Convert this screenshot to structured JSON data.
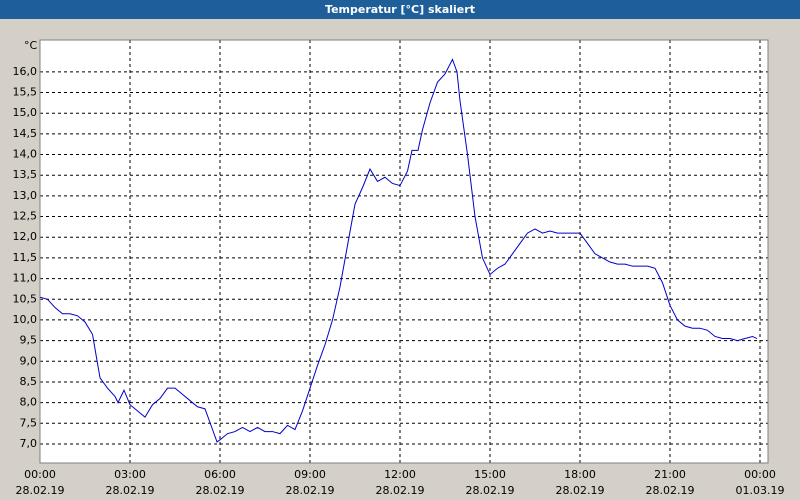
{
  "chart_data": {
    "type": "line",
    "title": "Temperatur [°C] skaliert",
    "ylabel": "°C",
    "x": [
      0,
      0.25,
      0.5,
      0.75,
      1,
      1.25,
      1.5,
      1.75,
      2,
      2.25,
      2.5,
      2.6,
      2.8,
      3,
      3.25,
      3.5,
      3.75,
      4,
      4.25,
      4.5,
      4.75,
      5,
      5.25,
      5.5,
      5.75,
      5.9,
      6,
      6.25,
      6.5,
      6.75,
      7,
      7.25,
      7.5,
      7.75,
      8,
      8.25,
      8.5,
      8.75,
      9,
      9.25,
      9.5,
      9.75,
      10,
      10.25,
      10.5,
      10.75,
      11,
      11.25,
      11.5,
      11.75,
      12,
      12.25,
      12.4,
      12.6,
      12.75,
      13,
      13.25,
      13.5,
      13.75,
      13.9,
      14,
      14.25,
      14.5,
      14.75,
      15,
      15.25,
      15.5,
      15.75,
      16,
      16.25,
      16.5,
      16.75,
      17,
      17.25,
      17.5,
      17.75,
      18,
      18.25,
      18.5,
      18.75,
      19,
      19.25,
      19.5,
      19.75,
      20,
      20.25,
      20.5,
      20.75,
      21,
      21.25,
      21.5,
      21.75,
      22,
      22.25,
      22.5,
      22.75,
      23,
      23.25,
      23.5,
      23.75,
      23.9
    ],
    "series": [
      {
        "name": "Temperatur",
        "color": "#0000c8",
        "values": [
          10.55,
          10.5,
          10.3,
          10.15,
          10.15,
          10.1,
          9.95,
          9.65,
          8.6,
          8.35,
          8.15,
          8.0,
          8.3,
          7.95,
          7.8,
          7.65,
          7.95,
          8.1,
          8.35,
          8.35,
          8.2,
          8.05,
          7.9,
          7.85,
          7.35,
          7.05,
          7.1,
          7.25,
          7.3,
          7.4,
          7.3,
          7.4,
          7.3,
          7.3,
          7.25,
          7.45,
          7.35,
          7.8,
          8.35,
          8.9,
          9.4,
          10.0,
          10.8,
          11.8,
          12.8,
          13.2,
          13.65,
          13.35,
          13.45,
          13.3,
          13.25,
          13.6,
          14.1,
          14.1,
          14.6,
          15.25,
          15.75,
          15.95,
          16.3,
          16.0,
          15.3,
          14.0,
          12.5,
          11.5,
          11.1,
          11.25,
          11.35,
          11.6,
          11.85,
          12.1,
          12.2,
          12.1,
          12.15,
          12.1,
          12.1,
          12.1,
          12.1,
          11.85,
          11.6,
          11.5,
          11.4,
          11.35,
          11.35,
          11.3,
          11.3,
          11.3,
          11.25,
          10.9,
          10.35,
          10.0,
          9.85,
          9.8,
          9.8,
          9.75,
          9.6,
          9.55,
          9.55,
          9.5,
          9.55,
          9.6,
          9.55
        ]
      }
    ],
    "xlim": [
      0,
      24
    ],
    "ylim": [
      6.54,
      16.77
    ],
    "xticks": [
      {
        "value": 0,
        "label": "00:00"
      },
      {
        "value": 3,
        "label": "03:00"
      },
      {
        "value": 6,
        "label": "06:00"
      },
      {
        "value": 9,
        "label": "09:00"
      },
      {
        "value": 12,
        "label": "12:00"
      },
      {
        "value": 15,
        "label": "15:00"
      },
      {
        "value": 18,
        "label": "18:00"
      },
      {
        "value": 21,
        "label": "21:00"
      },
      {
        "value": 24,
        "label": "00:00"
      }
    ],
    "xtick_dates": [
      "28.02.19",
      "28.02.19",
      "28.02.19",
      "28.02.19",
      "28.02.19",
      "28.02.19",
      "28.02.19",
      "28.02.19",
      "01.03.19"
    ],
    "yticks": [
      {
        "value": 7,
        "label": "7,0"
      },
      {
        "value": 7.5,
        "label": "7,5"
      },
      {
        "value": 8,
        "label": "8,0"
      },
      {
        "value": 8.5,
        "label": "8,5"
      },
      {
        "value": 9,
        "label": "9,0"
      },
      {
        "value": 9.5,
        "label": "9,5"
      },
      {
        "value": 10,
        "label": "10,0"
      },
      {
        "value": 10.5,
        "label": "10,5"
      },
      {
        "value": 11,
        "label": "11,0"
      },
      {
        "value": 11.5,
        "label": "11,5"
      },
      {
        "value": 12,
        "label": "12,0"
      },
      {
        "value": 12.5,
        "label": "12,5"
      },
      {
        "value": 13,
        "label": "13,0"
      },
      {
        "value": 13.5,
        "label": "13,5"
      },
      {
        "value": 14,
        "label": "14,0"
      },
      {
        "value": 14.5,
        "label": "14,5"
      },
      {
        "value": 15,
        "label": "15,0"
      },
      {
        "value": 15.5,
        "label": "15,5"
      },
      {
        "value": 16,
        "label": "16,0"
      }
    ],
    "grid": true
  }
}
